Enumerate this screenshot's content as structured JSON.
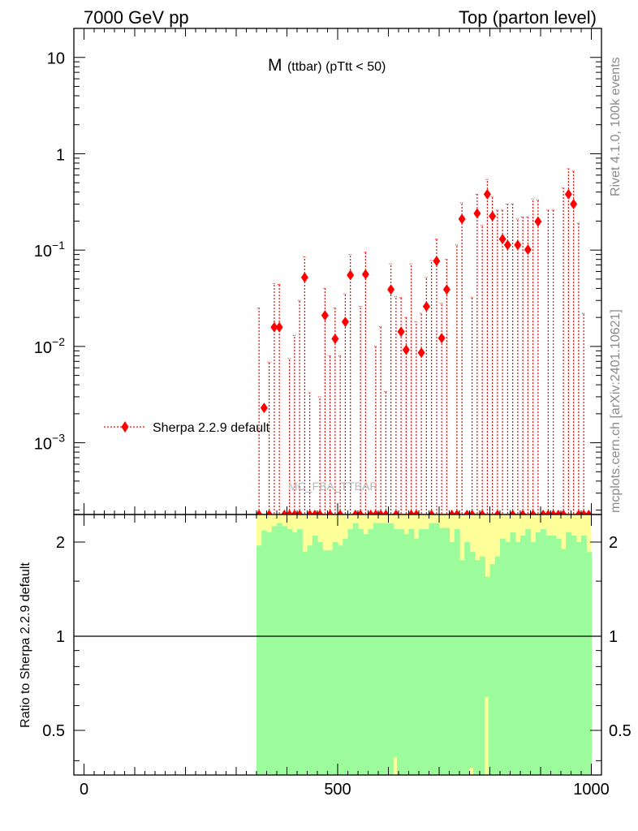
{
  "header": {
    "left": "7000 GeV pp",
    "right": "Top (parton level)"
  },
  "side_labels": {
    "rivet": "Rivet 4.1.0,  100k events",
    "mcplots": "mcplots.cern.ch [arXiv:2401.10621]"
  },
  "plot_title": {
    "main": "M",
    "sub": "(ttbar) (pTtt < 50)"
  },
  "watermark": "MC_FBA_TTBAR",
  "colors": {
    "series": "#ff0000",
    "band_inner": "#9cfc9c",
    "band_outer": "#ffff99"
  },
  "chart_data": [
    {
      "type": "scatter",
      "panel": "main",
      "title": "M (ttbar) (pTtt < 50)",
      "xlabel": "",
      "ylabel": "",
      "xlim": [
        -20,
        1020
      ],
      "yscale": "log",
      "ylim": [
        0.00018,
        20
      ],
      "y_ticks": [
        {
          "value": 10,
          "base": "10",
          "exp": ""
        },
        {
          "value": 1,
          "base": "1",
          "exp": ""
        },
        {
          "value": 0.1,
          "base": "10",
          "exp": "−1"
        },
        {
          "value": 0.01,
          "base": "10",
          "exp": "−2"
        },
        {
          "value": 0.001,
          "base": "10",
          "exp": "−3"
        }
      ],
      "legend": {
        "label": "Sherpa 2.2.9 default",
        "position": "lower-left"
      },
      "series": [
        {
          "name": "Sherpa 2.2.9 default",
          "points": [
            {
              "x": 355,
              "y": 0.0023
            },
            {
              "x": 375,
              "y": 0.0158
            },
            {
              "x": 385,
              "y": 0.0158
            },
            {
              "x": 435,
              "y": 0.052
            },
            {
              "x": 475,
              "y": 0.021
            },
            {
              "x": 495,
              "y": 0.012
            },
            {
              "x": 515,
              "y": 0.018
            },
            {
              "x": 525,
              "y": 0.055
            },
            {
              "x": 555,
              "y": 0.056
            },
            {
              "x": 605,
              "y": 0.039
            },
            {
              "x": 625,
              "y": 0.0142
            },
            {
              "x": 635,
              "y": 0.0092
            },
            {
              "x": 665,
              "y": 0.0086
            },
            {
              "x": 675,
              "y": 0.026
            },
            {
              "x": 695,
              "y": 0.077
            },
            {
              "x": 705,
              "y": 0.0122
            },
            {
              "x": 715,
              "y": 0.039
            },
            {
              "x": 745,
              "y": 0.21
            },
            {
              "x": 775,
              "y": 0.24
            },
            {
              "x": 795,
              "y": 0.38
            },
            {
              "x": 805,
              "y": 0.225
            },
            {
              "x": 825,
              "y": 0.13
            },
            {
              "x": 835,
              "y": 0.113
            },
            {
              "x": 855,
              "y": 0.113
            },
            {
              "x": 875,
              "y": 0.101
            },
            {
              "x": 895,
              "y": 0.198
            },
            {
              "x": 955,
              "y": 0.38
            },
            {
              "x": 965,
              "y": 0.3
            }
          ],
          "error_up": [
            {
              "x": 345,
              "y": 0.025
            },
            {
              "x": 365,
              "y": 0.0068
            },
            {
              "x": 375,
              "y": 0.045
            },
            {
              "x": 385,
              "y": 0.044
            },
            {
              "x": 405,
              "y": 0.0075
            },
            {
              "x": 415,
              "y": 0.013
            },
            {
              "x": 425,
              "y": 0.03
            },
            {
              "x": 435,
              "y": 0.085
            },
            {
              "x": 445,
              "y": 0.0033
            },
            {
              "x": 465,
              "y": 0.003
            },
            {
              "x": 475,
              "y": 0.04
            },
            {
              "x": 485,
              "y": 0.008
            },
            {
              "x": 495,
              "y": 0.025
            },
            {
              "x": 505,
              "y": 0.008
            },
            {
              "x": 515,
              "y": 0.035
            },
            {
              "x": 525,
              "y": 0.09
            },
            {
              "x": 545,
              "y": 0.026
            },
            {
              "x": 555,
              "y": 0.095
            },
            {
              "x": 575,
              "y": 0.01
            },
            {
              "x": 585,
              "y": 0.016
            },
            {
              "x": 595,
              "y": 0.0034
            },
            {
              "x": 605,
              "y": 0.072
            },
            {
              "x": 615,
              "y": 0.033
            },
            {
              "x": 625,
              "y": 0.032
            },
            {
              "x": 635,
              "y": 0.02
            },
            {
              "x": 645,
              "y": 0.072
            },
            {
              "x": 655,
              "y": 0.018
            },
            {
              "x": 665,
              "y": 0.022
            },
            {
              "x": 675,
              "y": 0.052
            },
            {
              "x": 685,
              "y": 0.078
            },
            {
              "x": 695,
              "y": 0.13
            },
            {
              "x": 705,
              "y": 0.028
            },
            {
              "x": 715,
              "y": 0.08
            },
            {
              "x": 735,
              "y": 0.113
            },
            {
              "x": 745,
              "y": 0.31
            },
            {
              "x": 765,
              "y": 0.032
            },
            {
              "x": 775,
              "y": 0.38
            },
            {
              "x": 785,
              "y": 0.18
            },
            {
              "x": 795,
              "y": 0.54
            },
            {
              "x": 805,
              "y": 0.36
            },
            {
              "x": 815,
              "y": 0.26
            },
            {
              "x": 825,
              "y": 0.26
            },
            {
              "x": 835,
              "y": 0.3
            },
            {
              "x": 845,
              "y": 0.3
            },
            {
              "x": 855,
              "y": 0.21
            },
            {
              "x": 865,
              "y": 0.22
            },
            {
              "x": 875,
              "y": 0.22
            },
            {
              "x": 885,
              "y": 0.34
            },
            {
              "x": 895,
              "y": 0.33
            },
            {
              "x": 915,
              "y": 0.26
            },
            {
              "x": 925,
              "y": 0.26
            },
            {
              "x": 945,
              "y": 0.44
            },
            {
              "x": 955,
              "y": 0.7
            },
            {
              "x": 965,
              "y": 0.66
            },
            {
              "x": 975,
              "y": 0.19
            },
            {
              "x": 985,
              "y": 0.022
            }
          ]
        }
      ]
    },
    {
      "type": "area",
      "panel": "ratio",
      "ylabel": "Ratio to Sherpa 2.2.9 default",
      "xlim": [
        -20,
        1020
      ],
      "yscale": "log",
      "ylim": [
        0.36,
        2.45
      ],
      "x_ticks": [
        "0",
        "500",
        "1000"
      ],
      "x_tick_values": [
        0,
        500,
        1000
      ],
      "y_ticks": [
        "0.5",
        "1",
        "2"
      ],
      "y_tick_values": [
        0.5,
        1,
        2
      ],
      "reference_line": 1,
      "band_start_x": 340,
      "band_end_x": 1000,
      "bin_width": 10,
      "inner_band_upper": [
        {
          "x": 340,
          "y": 1.95
        },
        {
          "x": 350,
          "y": 2.18
        },
        {
          "x": 360,
          "y": 2.15
        },
        {
          "x": 370,
          "y": 2.25
        },
        {
          "x": 380,
          "y": 2.3
        },
        {
          "x": 390,
          "y": 2.25
        },
        {
          "x": 400,
          "y": 2.2
        },
        {
          "x": 410,
          "y": 2.15
        },
        {
          "x": 420,
          "y": 2.2
        },
        {
          "x": 430,
          "y": 1.86
        },
        {
          "x": 440,
          "y": 1.95
        },
        {
          "x": 450,
          "y": 2.1
        },
        {
          "x": 460,
          "y": 2.0
        },
        {
          "x": 470,
          "y": 1.88
        },
        {
          "x": 480,
          "y": 1.88
        },
        {
          "x": 490,
          "y": 2.0
        },
        {
          "x": 500,
          "y": 1.95
        },
        {
          "x": 510,
          "y": 2.05
        },
        {
          "x": 520,
          "y": 2.2
        },
        {
          "x": 530,
          "y": 2.3
        },
        {
          "x": 540,
          "y": 2.2
        },
        {
          "x": 550,
          "y": 2.12
        },
        {
          "x": 560,
          "y": 2.2
        },
        {
          "x": 570,
          "y": 2.3
        },
        {
          "x": 580,
          "y": 2.3
        },
        {
          "x": 590,
          "y": 2.3
        },
        {
          "x": 600,
          "y": 2.3
        },
        {
          "x": 610,
          "y": 2.2
        },
        {
          "x": 620,
          "y": 2.2
        },
        {
          "x": 630,
          "y": 2.12
        },
        {
          "x": 640,
          "y": 2.2
        },
        {
          "x": 650,
          "y": 2.05
        },
        {
          "x": 660,
          "y": 2.2
        },
        {
          "x": 670,
          "y": 2.2
        },
        {
          "x": 680,
          "y": 2.3
        },
        {
          "x": 690,
          "y": 2.3
        },
        {
          "x": 700,
          "y": 2.22
        },
        {
          "x": 710,
          "y": 2.22
        },
        {
          "x": 720,
          "y": 2.0
        },
        {
          "x": 730,
          "y": 2.2
        },
        {
          "x": 740,
          "y": 1.75
        },
        {
          "x": 750,
          "y": 2.0
        },
        {
          "x": 760,
          "y": 1.86
        },
        {
          "x": 770,
          "y": 1.75
        },
        {
          "x": 780,
          "y": 1.8
        },
        {
          "x": 790,
          "y": 1.55
        },
        {
          "x": 800,
          "y": 1.7
        },
        {
          "x": 810,
          "y": 1.8
        },
        {
          "x": 820,
          "y": 2.05
        },
        {
          "x": 830,
          "y": 2.0
        },
        {
          "x": 840,
          "y": 2.15
        },
        {
          "x": 850,
          "y": 2.0
        },
        {
          "x": 860,
          "y": 2.1
        },
        {
          "x": 870,
          "y": 2.2
        },
        {
          "x": 880,
          "y": 2.0
        },
        {
          "x": 890,
          "y": 2.15
        },
        {
          "x": 900,
          "y": 2.2
        },
        {
          "x": 910,
          "y": 2.1
        },
        {
          "x": 920,
          "y": 2.1
        },
        {
          "x": 930,
          "y": 2.05
        },
        {
          "x": 940,
          "y": 1.9
        },
        {
          "x": 950,
          "y": 2.15
        },
        {
          "x": 960,
          "y": 2.1
        },
        {
          "x": 970,
          "y": 2.0
        },
        {
          "x": 980,
          "y": 2.1
        },
        {
          "x": 990,
          "y": 1.86
        }
      ],
      "inner_band_lower_gaps": [
        {
          "x": 610,
          "y": 0.41
        },
        {
          "x": 760,
          "y": 0.38
        },
        {
          "x": 790,
          "y": 0.64
        }
      ],
      "outer_band_upper": 2.45
    }
  ]
}
